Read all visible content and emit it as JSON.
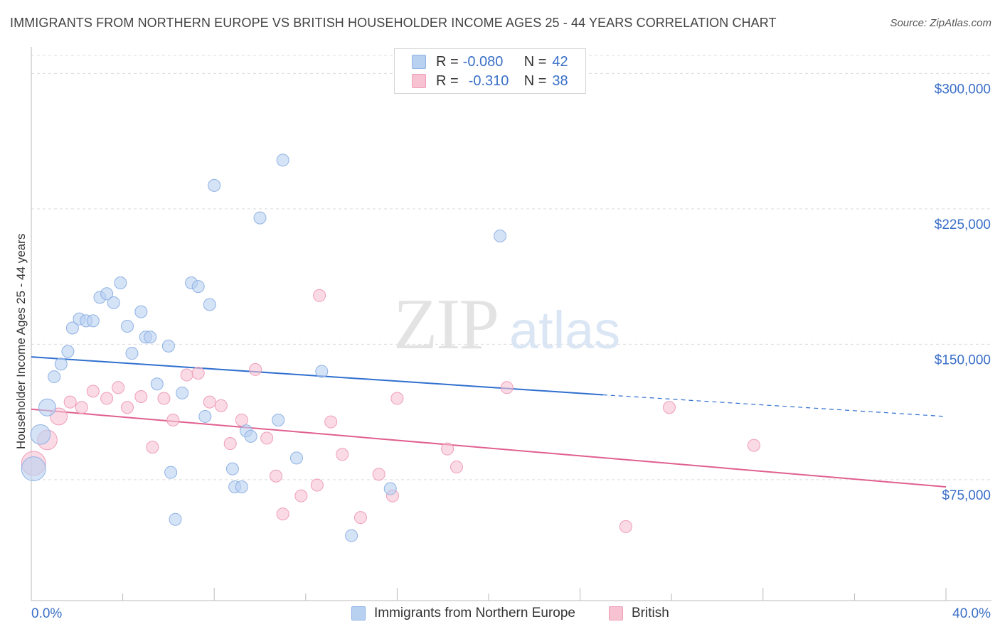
{
  "header": {
    "title": "IMMIGRANTS FROM NORTHERN EUROPE VS BRITISH HOUSEHOLDER INCOME AGES 25 - 44 YEARS CORRELATION CHART",
    "source": "Source: ZipAtlas.com"
  },
  "watermark": {
    "zip": "ZIP",
    "atlas": "atlas"
  },
  "legend": {
    "rows": [
      {
        "r_label": "R =",
        "r_value": "-0.080",
        "n_label": "N =",
        "n_value": "42",
        "color": "#a9c6ee"
      },
      {
        "r_label": "R =",
        "r_value": "-0.310",
        "n_label": "N =",
        "n_value": "38",
        "color": "#f5b7cb"
      }
    ]
  },
  "bottom_legend": {
    "series1": "Immigrants from Northern Europe",
    "series2": "British"
  },
  "colors": {
    "blue_fill": "#b9d1f1",
    "blue_stroke": "#8fb2e4",
    "blue_line": "#2f6fcf",
    "pink_fill": "#f7c3d3",
    "pink_stroke": "#ef9db7",
    "pink_line": "#e05f8f",
    "axis_label": "#3a6fc8"
  },
  "chart_data": {
    "type": "scatter",
    "title": "IMMIGRANTS FROM NORTHERN EUROPE VS BRITISH HOUSEHOLDER INCOME AGES 25 - 44 YEARS CORRELATION CHART",
    "xlabel": "",
    "ylabel": "Householder Income Ages 25 - 44 years",
    "xlim": [
      0,
      40
    ],
    "ylim": [
      8000,
      310000
    ],
    "x_tick_labels": [
      "0.0%",
      "40.0%"
    ],
    "y_ticks": [
      75000,
      150000,
      225000,
      300000
    ],
    "y_tick_labels": [
      "$75,000",
      "$150,000",
      "$225,000",
      "$300,000"
    ],
    "grid": true,
    "series": [
      {
        "name": "Immigrants from Northern Europe",
        "R": -0.08,
        "N": 42,
        "trend": {
          "x0": 0,
          "y0": 143000,
          "x1": 25,
          "y1": 122000,
          "dash_to_x": 40,
          "dash_to_y": 110000
        },
        "points": [
          [
            0.1,
            81000,
            3
          ],
          [
            0.4,
            100000,
            2
          ],
          [
            0.7,
            115000,
            1.5
          ],
          [
            1.0,
            132000,
            1
          ],
          [
            1.3,
            139000,
            1
          ],
          [
            1.6,
            146000,
            1
          ],
          [
            1.8,
            159000,
            1
          ],
          [
            2.1,
            164000,
            1
          ],
          [
            2.4,
            163000,
            1
          ],
          [
            2.7,
            163000,
            1
          ],
          [
            3.0,
            176000,
            1
          ],
          [
            3.3,
            178000,
            1
          ],
          [
            3.6,
            173000,
            1
          ],
          [
            3.9,
            184000,
            1
          ],
          [
            4.2,
            160000,
            1
          ],
          [
            4.4,
            145000,
            1
          ],
          [
            4.8,
            168000,
            1
          ],
          [
            5.0,
            154000,
            1
          ],
          [
            5.2,
            154000,
            1
          ],
          [
            5.5,
            128000,
            1
          ],
          [
            6.0,
            149000,
            1
          ],
          [
            6.1,
            79000,
            1
          ],
          [
            6.3,
            53000,
            1
          ],
          [
            6.6,
            123000,
            1
          ],
          [
            7.0,
            184000,
            1
          ],
          [
            7.3,
            182000,
            1
          ],
          [
            7.6,
            110000,
            1
          ],
          [
            7.8,
            172000,
            1
          ],
          [
            8.0,
            238000,
            1
          ],
          [
            8.8,
            81000,
            1
          ],
          [
            8.9,
            71000,
            1
          ],
          [
            9.2,
            71000,
            1
          ],
          [
            9.4,
            102000,
            1
          ],
          [
            9.6,
            99000,
            1
          ],
          [
            10.0,
            220000,
            1
          ],
          [
            10.8,
            108000,
            1
          ],
          [
            11.0,
            252000,
            1
          ],
          [
            11.6,
            87000,
            1
          ],
          [
            12.7,
            135000,
            1
          ],
          [
            14.0,
            44000,
            1
          ],
          [
            15.7,
            70000,
            1
          ],
          [
            20.5,
            210000,
            1
          ]
        ]
      },
      {
        "name": "British",
        "R": -0.31,
        "N": 38,
        "trend": {
          "x0": 0,
          "y0": 114000,
          "x1": 40,
          "y1": 71000
        },
        "points": [
          [
            0.1,
            84000,
            3
          ],
          [
            0.7,
            97000,
            2
          ],
          [
            1.2,
            110000,
            1.5
          ],
          [
            1.7,
            118000,
            1
          ],
          [
            2.2,
            115000,
            1
          ],
          [
            2.7,
            124000,
            1
          ],
          [
            3.3,
            120000,
            1
          ],
          [
            3.8,
            126000,
            1
          ],
          [
            4.2,
            115000,
            1
          ],
          [
            4.8,
            121000,
            1
          ],
          [
            5.3,
            93000,
            1
          ],
          [
            5.8,
            120000,
            1
          ],
          [
            6.2,
            108000,
            1
          ],
          [
            6.8,
            133000,
            1
          ],
          [
            7.3,
            134000,
            1
          ],
          [
            7.8,
            118000,
            1
          ],
          [
            8.3,
            116000,
            1
          ],
          [
            8.7,
            95000,
            1
          ],
          [
            9.2,
            108000,
            1
          ],
          [
            9.8,
            136000,
            1
          ],
          [
            10.3,
            98000,
            1
          ],
          [
            10.7,
            77000,
            1
          ],
          [
            11.0,
            56000,
            1
          ],
          [
            11.8,
            66000,
            1
          ],
          [
            12.5,
            72000,
            1
          ],
          [
            12.6,
            177000,
            1
          ],
          [
            13.1,
            107000,
            1
          ],
          [
            13.6,
            89000,
            1
          ],
          [
            14.4,
            54000,
            1
          ],
          [
            15.2,
            78000,
            1
          ],
          [
            15.8,
            66000,
            1
          ],
          [
            16.0,
            120000,
            1
          ],
          [
            18.2,
            92000,
            1
          ],
          [
            18.6,
            82000,
            1
          ],
          [
            20.8,
            126000,
            1
          ],
          [
            26.0,
            49000,
            1
          ],
          [
            27.9,
            115000,
            1
          ],
          [
            31.6,
            94000,
            1
          ]
        ]
      }
    ]
  }
}
